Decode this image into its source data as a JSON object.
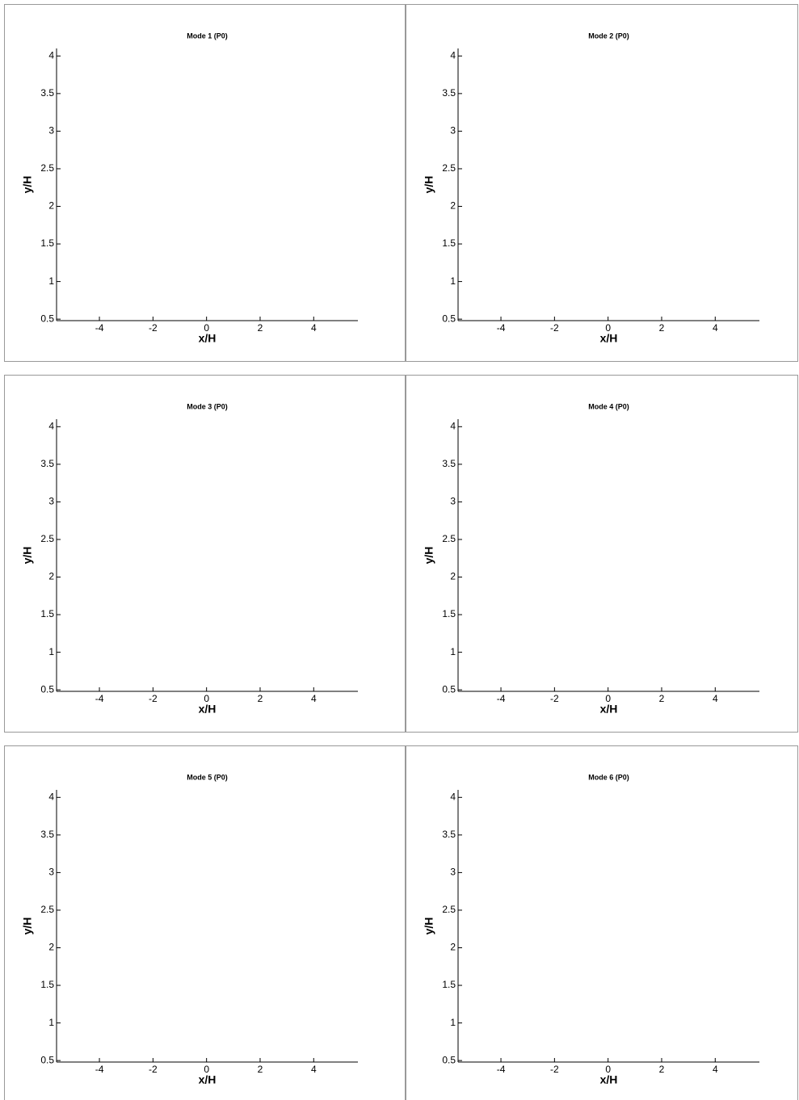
{
  "chart_data": [
    {
      "type": "quiver",
      "title": "Mode 1 (P0)",
      "xlabel": "x/H",
      "ylabel": "y/H",
      "xlim": [
        -5.6,
        5.65
      ],
      "ylim": [
        0.48,
        4.1
      ],
      "xticks": [
        -4,
        -2,
        0,
        2,
        4
      ],
      "yticks": [
        0.5,
        1,
        1.5,
        2,
        2.5,
        3,
        3.5,
        4
      ]
    },
    {
      "type": "quiver",
      "title": "Mode 2 (P0)",
      "xlabel": "x/H",
      "ylabel": "y/H",
      "xlim": [
        -5.6,
        5.65
      ],
      "ylim": [
        0.48,
        4.1
      ],
      "xticks": [
        -4,
        -2,
        0,
        2,
        4
      ],
      "yticks": [
        0.5,
        1,
        1.5,
        2,
        2.5,
        3,
        3.5,
        4
      ]
    },
    {
      "type": "quiver",
      "title": "Mode 3 (P0)",
      "xlabel": "x/H",
      "ylabel": "y/H",
      "xlim": [
        -5.6,
        5.65
      ],
      "ylim": [
        0.48,
        4.1
      ],
      "xticks": [
        -4,
        -2,
        0,
        2,
        4
      ],
      "yticks": [
        0.5,
        1,
        1.5,
        2,
        2.5,
        3,
        3.5,
        4
      ]
    },
    {
      "type": "quiver",
      "title": "Mode 4 (P0)",
      "xlabel": "x/H",
      "ylabel": "y/H",
      "xlim": [
        -5.6,
        5.65
      ],
      "ylim": [
        0.48,
        4.1
      ],
      "xticks": [
        -4,
        -2,
        0,
        2,
        4
      ],
      "yticks": [
        0.5,
        1,
        1.5,
        2,
        2.5,
        3,
        3.5,
        4
      ]
    },
    {
      "type": "quiver",
      "title": "Mode 5 (P0)",
      "xlabel": "x/H",
      "ylabel": "y/H",
      "xlim": [
        -5.6,
        5.65
      ],
      "ylim": [
        0.48,
        4.1
      ],
      "xticks": [
        -4,
        -2,
        0,
        2,
        4
      ],
      "yticks": [
        0.5,
        1,
        1.5,
        2,
        2.5,
        3,
        3.5,
        4
      ]
    },
    {
      "type": "quiver",
      "title": "Mode 6 (P0)",
      "xlabel": "x/H",
      "ylabel": "y/H",
      "xlim": [
        -5.6,
        5.65
      ],
      "ylim": [
        0.48,
        4.1
      ],
      "xticks": [
        -4,
        -2,
        0,
        2,
        4
      ],
      "yticks": [
        0.5,
        1,
        1.5,
        2,
        2.5,
        3,
        3.5,
        4
      ]
    }
  ]
}
